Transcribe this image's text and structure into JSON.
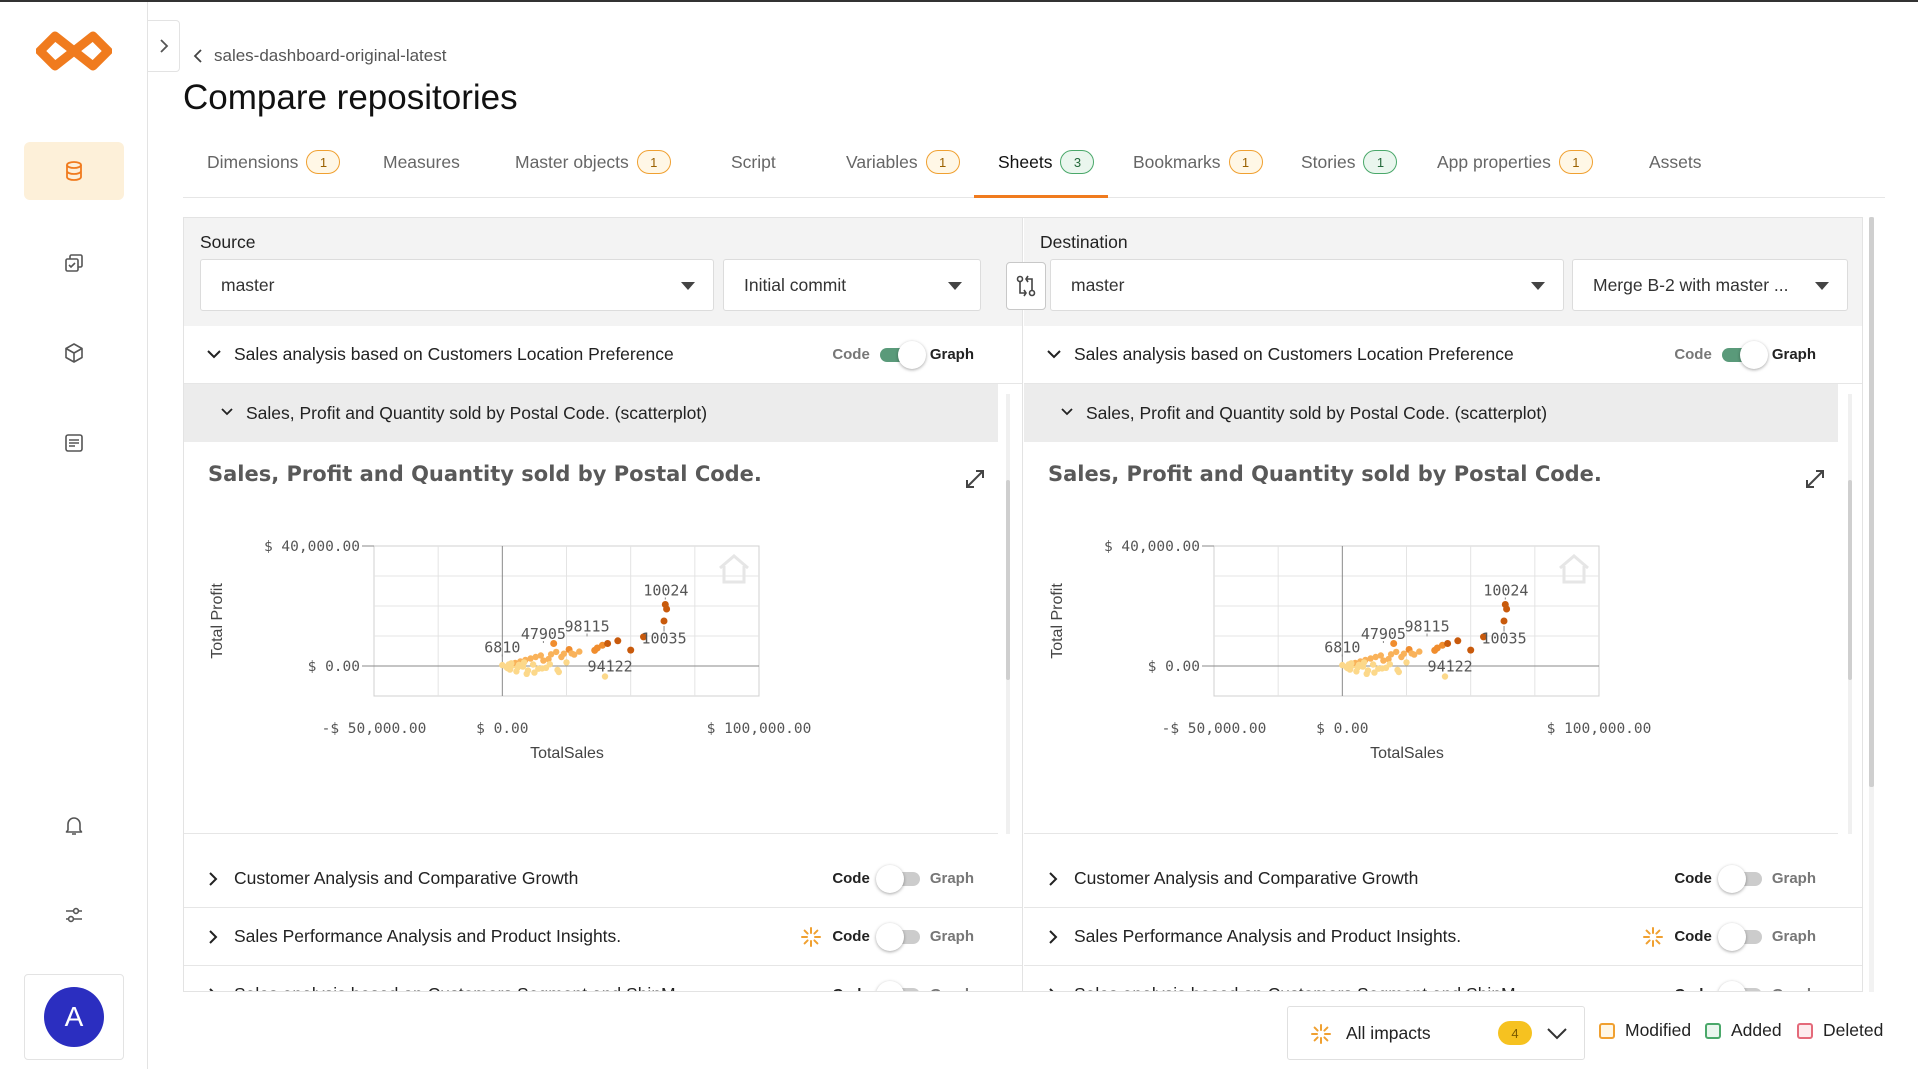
{
  "breadcrumb": {
    "label": "sales-dashboard-original-latest"
  },
  "page": {
    "title": "Compare repositories"
  },
  "tabs": [
    {
      "label": "Dimensions",
      "count": "1",
      "badge": "orange"
    },
    {
      "label": "Measures",
      "count": "",
      "badge": ""
    },
    {
      "label": "Master objects",
      "count": "1",
      "badge": "orange"
    },
    {
      "label": "Script",
      "count": "",
      "badge": ""
    },
    {
      "label": "Variables",
      "count": "1",
      "badge": "orange"
    },
    {
      "label": "Sheets",
      "count": "3",
      "badge": "green",
      "active": true
    },
    {
      "label": "Bookmarks",
      "count": "1",
      "badge": "orange"
    },
    {
      "label": "Stories",
      "count": "1",
      "badge": "green"
    },
    {
      "label": "App properties",
      "count": "1",
      "badge": "orange"
    },
    {
      "label": "Assets",
      "count": "",
      "badge": ""
    }
  ],
  "source": {
    "label": "Source",
    "branch": "master",
    "commit": "Initial commit"
  },
  "destination": {
    "label": "Destination",
    "branch": "master",
    "commit": "Merge B-2 with master ..."
  },
  "toggle": {
    "code": "Code",
    "graph": "Graph"
  },
  "sheets": [
    {
      "title": "Sales analysis based on Customers Location Preference",
      "expanded": true,
      "graph_on": true,
      "impact": false
    },
    {
      "title": "Customer Analysis and Comparative Growth",
      "expanded": false,
      "graph_on": false,
      "impact": false
    },
    {
      "title": "Sales Performance Analysis and Product Insights.",
      "expanded": false,
      "graph_on": false,
      "impact": true
    },
    {
      "title": "Sales analysis based on Customers Segment and ShipM...",
      "expanded": false,
      "graph_on": false,
      "impact": false
    }
  ],
  "object": {
    "title": "Sales, Profit and Quantity sold by Postal Code. (scatterplot)"
  },
  "chart_data": {
    "type": "scatter",
    "title": "Sales, Profit and Quantity sold by Postal Code.",
    "xlabel": "TotalSales",
    "ylabel": "Total Profit",
    "x_ticks": [
      "-$ 50,000.00",
      "$ 0.00",
      "$ 100,000.00"
    ],
    "y_ticks": [
      "$ 40,000.00",
      "$ 0.00"
    ],
    "xlim": [
      -50000,
      100000
    ],
    "ylim": [
      -10000,
      40000
    ],
    "grid": true,
    "annotations": [
      "10024",
      "98115",
      "47905",
      "6810",
      "10035",
      "94122"
    ],
    "points": [
      [
        0,
        300,
        1
      ],
      [
        1500,
        -300,
        1
      ],
      [
        2500,
        500,
        1
      ],
      [
        3000,
        -1200,
        1
      ],
      [
        4000,
        200,
        1
      ],
      [
        5000,
        1000,
        2
      ],
      [
        6000,
        -500,
        1
      ],
      [
        7000,
        1500,
        2
      ],
      [
        8000,
        -200,
        1
      ],
      [
        9000,
        2000,
        2
      ],
      [
        10000,
        -1500,
        1
      ],
      [
        11000,
        2500,
        2
      ],
      [
        12000,
        500,
        1
      ],
      [
        13000,
        3000,
        2
      ],
      [
        14000,
        -900,
        1
      ],
      [
        15000,
        3500,
        2
      ],
      [
        16000,
        1800,
        2
      ],
      [
        17000,
        -600,
        1
      ],
      [
        18000,
        2300,
        2
      ],
      [
        19000,
        3900,
        2
      ],
      [
        20000,
        7500,
        3
      ],
      [
        21000,
        4700,
        2
      ],
      [
        22000,
        -2000,
        1
      ],
      [
        23000,
        3000,
        2
      ],
      [
        24000,
        4100,
        2
      ],
      [
        25000,
        1200,
        1
      ],
      [
        26000,
        5500,
        3
      ],
      [
        27000,
        4200,
        2
      ],
      [
        28000,
        3800,
        2
      ],
      [
        30000,
        4800,
        2
      ],
      [
        2000,
        -700,
        1
      ],
      [
        3500,
        900,
        1
      ],
      [
        5500,
        -1800,
        1
      ],
      [
        6500,
        400,
        1
      ],
      [
        9500,
        -2600,
        1
      ],
      [
        12500,
        -2200,
        1
      ],
      [
        15500,
        -800,
        1
      ],
      [
        18500,
        600,
        1
      ],
      [
        21500,
        -1300,
        1
      ],
      [
        8500,
        1200,
        1
      ],
      [
        36000,
        5200,
        3
      ],
      [
        37000,
        6000,
        3
      ],
      [
        39000,
        6900,
        3
      ],
      [
        41000,
        7500,
        4
      ],
      [
        45000,
        8400,
        4
      ],
      [
        40000,
        -3500,
        1
      ],
      [
        50000,
        5300,
        4
      ],
      [
        55000,
        9700,
        4
      ],
      [
        63000,
        15000,
        4
      ],
      [
        64000,
        19000,
        4
      ],
      [
        63500,
        20500,
        4
      ]
    ],
    "colors": {
      "1": "#fcd88a",
      "2": "#f9b25a",
      "3": "#f08d2e",
      "4": "#c85a0c"
    }
  },
  "impacts": {
    "label": "All impacts",
    "count": "4"
  },
  "legend": [
    {
      "label": "Modified",
      "color": "#f0a030"
    },
    {
      "label": "Added",
      "color": "#4aa86a"
    },
    {
      "label": "Deleted",
      "color": "#e46a7a"
    }
  ]
}
